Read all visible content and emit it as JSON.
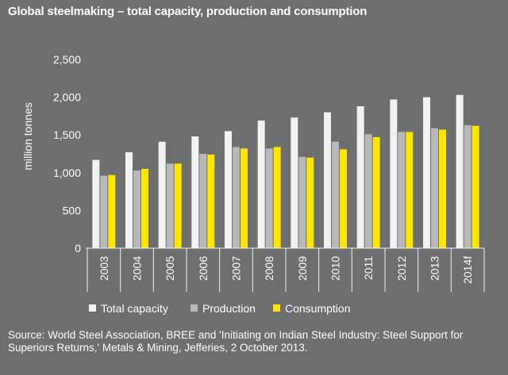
{
  "title": "Global steelmaking – total capacity, production and consumption",
  "source": "Source: World Steel Association, BREE and 'Initiating on Indian Steel Industry: Steel Support for Superiors Returns,' Metals & Mining, Jefferies, 2 October 2013.",
  "colors": {
    "background": "#6d6e70",
    "total_capacity": "#f2f2f2",
    "production": "#b7b8ba",
    "consumption": "#ffe600"
  },
  "chart_data": {
    "type": "bar",
    "title": "Global steelmaking – total capacity, production and consumption",
    "xlabel": "",
    "ylabel": "million tonnes",
    "ylim": [
      0,
      2500
    ],
    "yticks": [
      "0",
      "500",
      "1,000",
      "1,500",
      "2,000",
      "2,500"
    ],
    "ytick_values": [
      0,
      500,
      1000,
      1500,
      2000,
      2500
    ],
    "grid": false,
    "legend": "bottom",
    "categories": [
      "2003",
      "2004",
      "2005",
      "2006",
      "2007",
      "2008",
      "2009",
      "2010",
      "2011",
      "2012",
      "2013",
      "2014f"
    ],
    "series": [
      {
        "name": "Total capacity",
        "values": [
          1170,
          1270,
          1410,
          1480,
          1550,
          1690,
          1730,
          1800,
          1880,
          1970,
          2000,
          2030
        ]
      },
      {
        "name": "Production",
        "values": [
          960,
          1030,
          1120,
          1250,
          1340,
          1320,
          1210,
          1410,
          1510,
          1540,
          1590,
          1630
        ]
      },
      {
        "name": "Consumption",
        "values": [
          970,
          1050,
          1120,
          1240,
          1320,
          1340,
          1200,
          1310,
          1470,
          1540,
          1570,
          1620
        ]
      }
    ]
  }
}
